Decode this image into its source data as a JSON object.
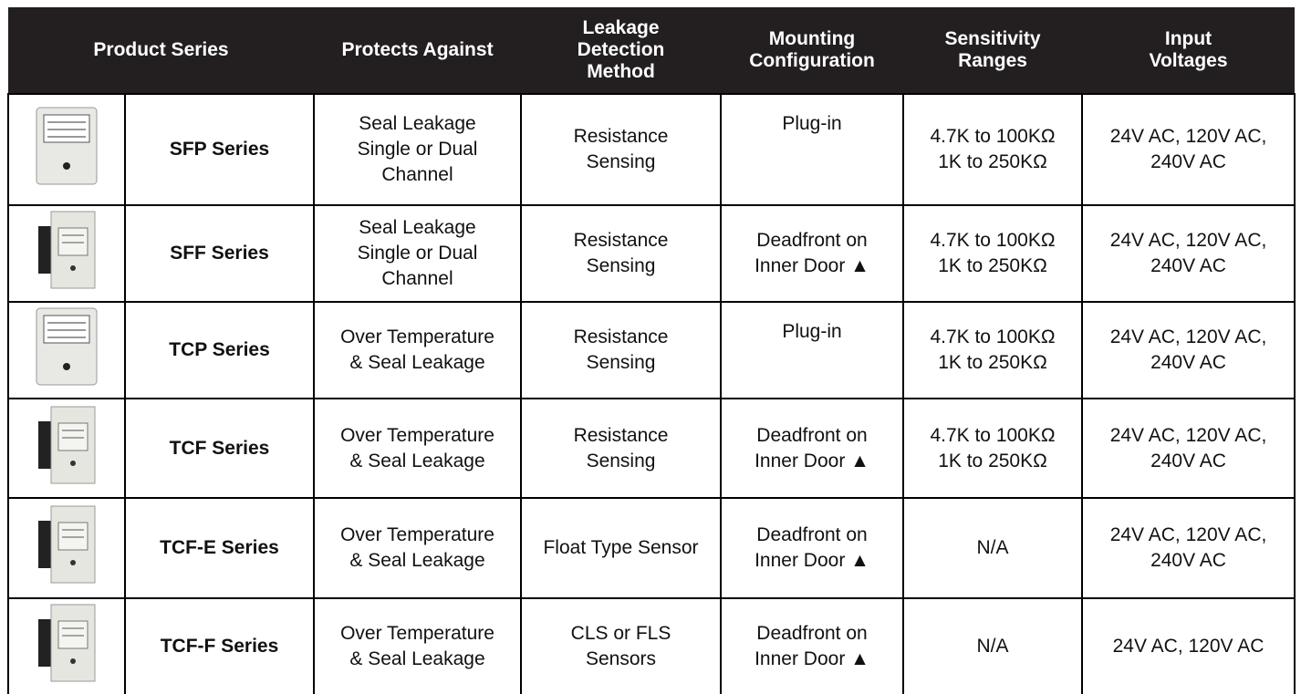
{
  "table": {
    "header": [
      "Product Series",
      [
        "Protects Against"
      ],
      [
        "Leakage",
        "Detection",
        "Method"
      ],
      [
        "Mounting",
        "Configuration"
      ],
      [
        "Sensitivity",
        "Ranges"
      ],
      [
        "Input",
        "Voltages"
      ]
    ],
    "rows": [
      [
        [
          "SFP Series"
        ],
        [
          "Seal Leakage",
          "Single or Dual",
          "Channel"
        ],
        [
          "Resistance",
          "Sensing"
        ],
        [
          "Plug-in"
        ],
        [
          "4.7K to 100KΩ",
          "1K to 250KΩ"
        ],
        [
          "24V AC, 120V AC,",
          "240V AC"
        ]
      ],
      [
        [
          "SFF Series"
        ],
        [
          "Seal Leakage",
          "Single or Dual",
          "Channel"
        ],
        [
          "Resistance",
          "Sensing"
        ],
        [
          "Deadfront on",
          "Inner Door ▲"
        ],
        [
          "4.7K to 100KΩ",
          "1K to 250KΩ"
        ],
        [
          "24V AC, 120V AC,",
          "240V AC"
        ]
      ],
      [
        [
          "TCP Series"
        ],
        [
          "Over Temperature",
          "& Seal Leakage"
        ],
        [
          "Resistance",
          "Sensing"
        ],
        [
          "Plug-in"
        ],
        [
          "4.7K to 100KΩ",
          "1K to 250KΩ"
        ],
        [
          "24V AC, 120V AC,",
          "240V AC"
        ]
      ],
      [
        [
          "TCF Series"
        ],
        [
          "Over Temperature",
          "& Seal Leakage"
        ],
        [
          "Resistance",
          "Sensing"
        ],
        [
          "Deadfront on",
          "Inner Door ▲"
        ],
        [
          "4.7K to 100KΩ",
          "1K to 250KΩ"
        ],
        [
          "24V AC, 120V AC,",
          "240V AC"
        ]
      ],
      [
        [
          "TCF-E Series"
        ],
        [
          "Over Temperature",
          "& Seal Leakage"
        ],
        [
          "Float Type Sensor"
        ],
        [
          "Deadfront on",
          "Inner Door ▲"
        ],
        [
          "N/A"
        ],
        [
          "24V AC, 120V AC,",
          "240V AC"
        ]
      ],
      [
        [
          "TCF-F Series"
        ],
        [
          "Over Temperature",
          "& Seal Leakage"
        ],
        [
          "CLS or FLS",
          "Sensors"
        ],
        [
          "Deadfront on",
          "Inner Door ▲"
        ],
        [
          "N/A"
        ],
        [
          "24V AC, 120V AC"
        ]
      ]
    ]
  }
}
